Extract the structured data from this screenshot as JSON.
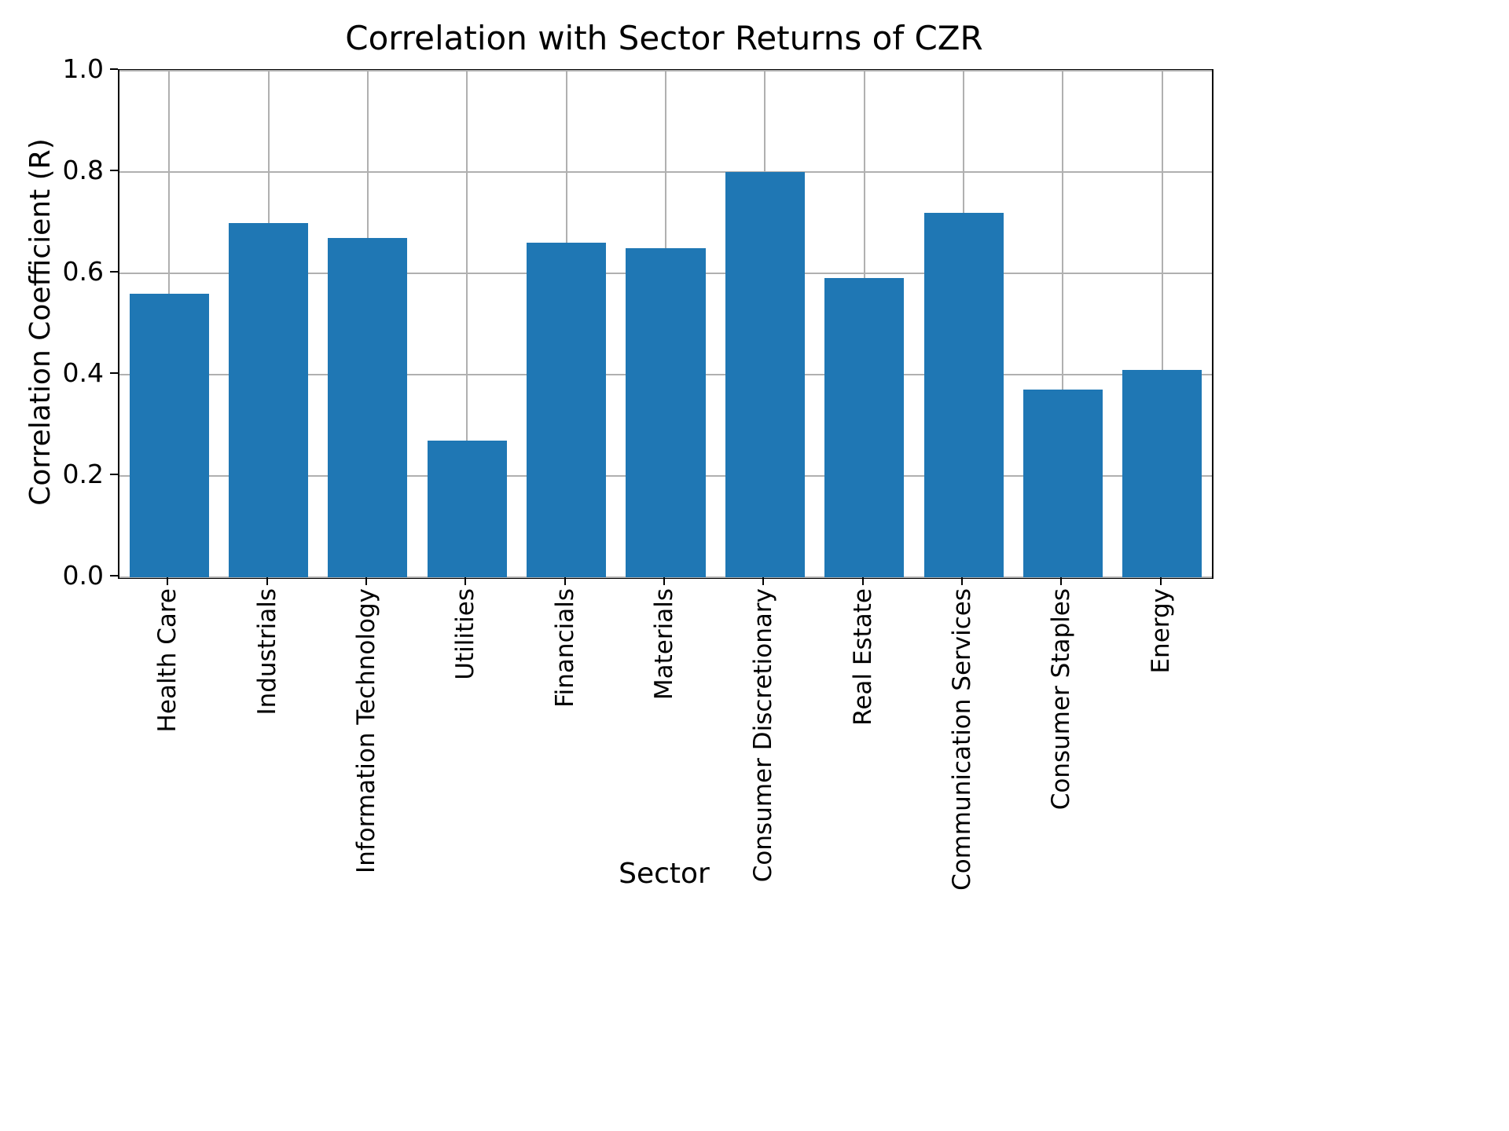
{
  "chart_data": {
    "type": "bar",
    "title": "Correlation with Sector Returns of CZR",
    "xlabel": "Sector",
    "ylabel": "Correlation Coefficient (R)",
    "categories": [
      "Health Care",
      "Industrials",
      "Information Technology",
      "Utilities",
      "Financials",
      "Materials",
      "Consumer Discretionary",
      "Real Estate",
      "Communication Services",
      "Consumer Staples",
      "Energy"
    ],
    "values": [
      0.56,
      0.7,
      0.67,
      0.27,
      0.66,
      0.65,
      0.8,
      0.59,
      0.72,
      0.37,
      0.41
    ],
    "ylim": [
      0.0,
      1.0
    ],
    "yticks": [
      0.0,
      0.2,
      0.4,
      0.6,
      0.8,
      1.0
    ],
    "ytick_labels": [
      "0.0",
      "0.2",
      "0.4",
      "0.6",
      "0.8",
      "1.0"
    ],
    "grid": true,
    "legend_position": "none",
    "bar_color": "#1f77b4",
    "grid_color": "#b0b0b0",
    "axis_color": "#000000"
  }
}
